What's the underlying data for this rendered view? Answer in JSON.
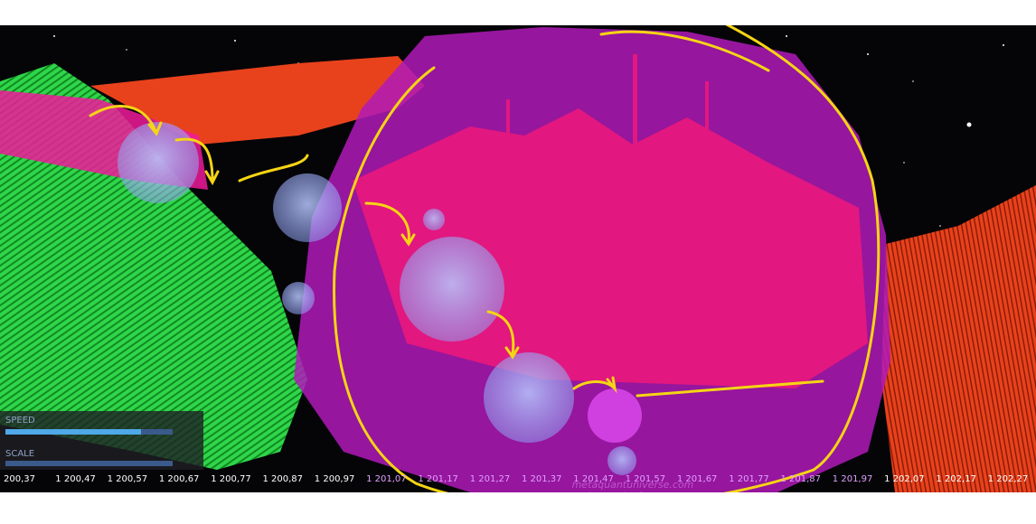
{
  "panel": {
    "speed_label": "SPEED",
    "scale_label": "SCALE"
  },
  "axis_labels": [
    "200,37",
    "1 200,47",
    "1 200,57",
    "1 200,67",
    "1 200,77",
    "1 200,87",
    "1 200,97",
    "1 201,07",
    "1 201,17",
    "1 201,27",
    "1 201,37",
    "1 201,47",
    "1 201,57",
    "1 201,67",
    "1 201,77",
    "1 201,87",
    "1 201,97",
    "1 202,07",
    "1 202,17",
    "1 202,27"
  ],
  "watermark": "metaquantuniverse.com"
}
